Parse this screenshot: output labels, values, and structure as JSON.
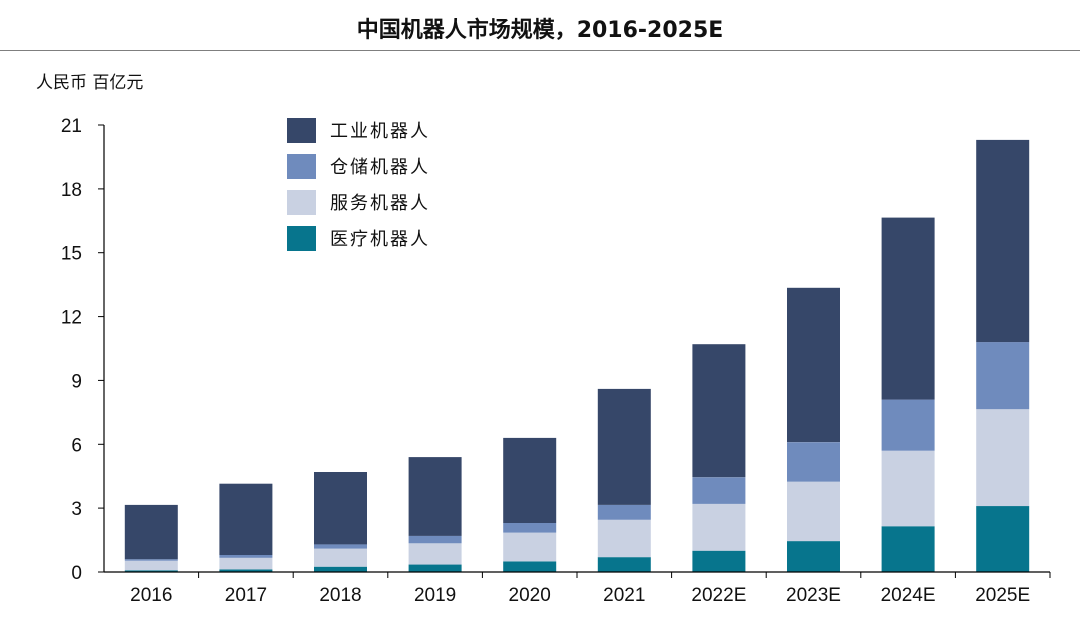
{
  "page": {
    "title": "中国机器人市场规模，2016-2025E",
    "unit": "人民币 百亿元"
  },
  "colors": {
    "工业机器人": "#364769",
    "仓储机器人": "#6f8bbd",
    "服务机器人": "#c9d1e2",
    "医疗机器人": "#07758d",
    "axis": "#000000",
    "rule": "#7f7f7f"
  },
  "chart_data": {
    "type": "bar",
    "stacked": true,
    "title": "中国机器人市场规模，2016-2025E",
    "ylabel": "人民币 百亿元",
    "xlabel": "",
    "ylim": [
      0,
      21
    ],
    "yticks": [
      0,
      3,
      6,
      9,
      12,
      15,
      18,
      21
    ],
    "grid": false,
    "legend_position": "top-left",
    "categories": [
      "2016",
      "2017",
      "2018",
      "2019",
      "2020",
      "2021",
      "2022E",
      "2023E",
      "2024E",
      "2025E"
    ],
    "series": [
      {
        "name": "医疗机器人",
        "values": [
          0.08,
          0.12,
          0.25,
          0.35,
          0.5,
          0.7,
          1.0,
          1.45,
          2.15,
          3.1
        ]
      },
      {
        "name": "服务机器人",
        "values": [
          0.45,
          0.55,
          0.85,
          1.0,
          1.35,
          1.75,
          2.2,
          2.8,
          3.55,
          4.55
        ]
      },
      {
        "name": "仓储机器人",
        "values": [
          0.07,
          0.13,
          0.2,
          0.35,
          0.45,
          0.7,
          1.25,
          1.85,
          2.4,
          3.15
        ]
      },
      {
        "name": "工业机器人",
        "values": [
          2.55,
          3.35,
          3.4,
          3.7,
          4.0,
          5.45,
          6.25,
          7.25,
          8.55,
          9.5
        ]
      }
    ]
  }
}
